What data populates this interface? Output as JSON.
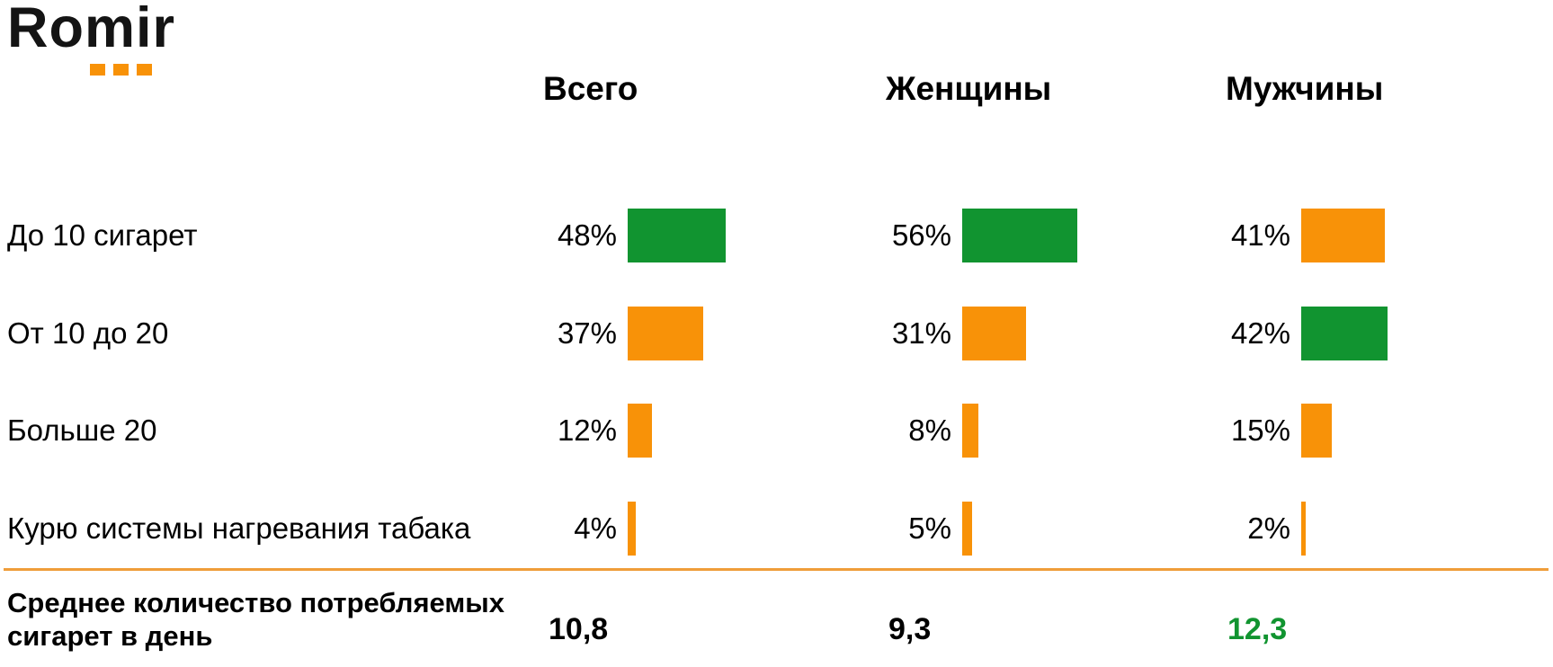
{
  "logo": {
    "text": "Romir",
    "dots_count": 3
  },
  "colors": {
    "green": "#119430",
    "orange": "#F89208",
    "text": "#000000",
    "divider": "#EF9D3A"
  },
  "chart_data": {
    "type": "bar",
    "orientation": "horizontal",
    "unit": "%",
    "title": "",
    "xlabel": "",
    "ylabel": "",
    "axis": "none",
    "grid": false,
    "legend": "none",
    "value_labels": "left-of-bar",
    "categories": [
      "До 10 сигарет",
      "От 10 до 20",
      "Больше 20",
      "Курю системы нагревания табака"
    ],
    "series": [
      {
        "name": "Всего",
        "values": [
          48,
          37,
          12,
          4
        ],
        "bar_colors": [
          "green",
          "orange",
          "orange",
          "orange"
        ]
      },
      {
        "name": "Женщины",
        "values": [
          56,
          31,
          8,
          5
        ],
        "bar_colors": [
          "green",
          "orange",
          "orange",
          "orange"
        ]
      },
      {
        "name": "Мужчины",
        "values": [
          41,
          42,
          15,
          2
        ],
        "bar_colors": [
          "orange",
          "green",
          "orange",
          "orange"
        ]
      }
    ],
    "summary_row": {
      "label": "Среднее количество потребляемых сигарет в день",
      "values": [
        "10,8",
        "9,3",
        "12,3"
      ],
      "value_colors": [
        "text",
        "text",
        "green"
      ]
    }
  }
}
